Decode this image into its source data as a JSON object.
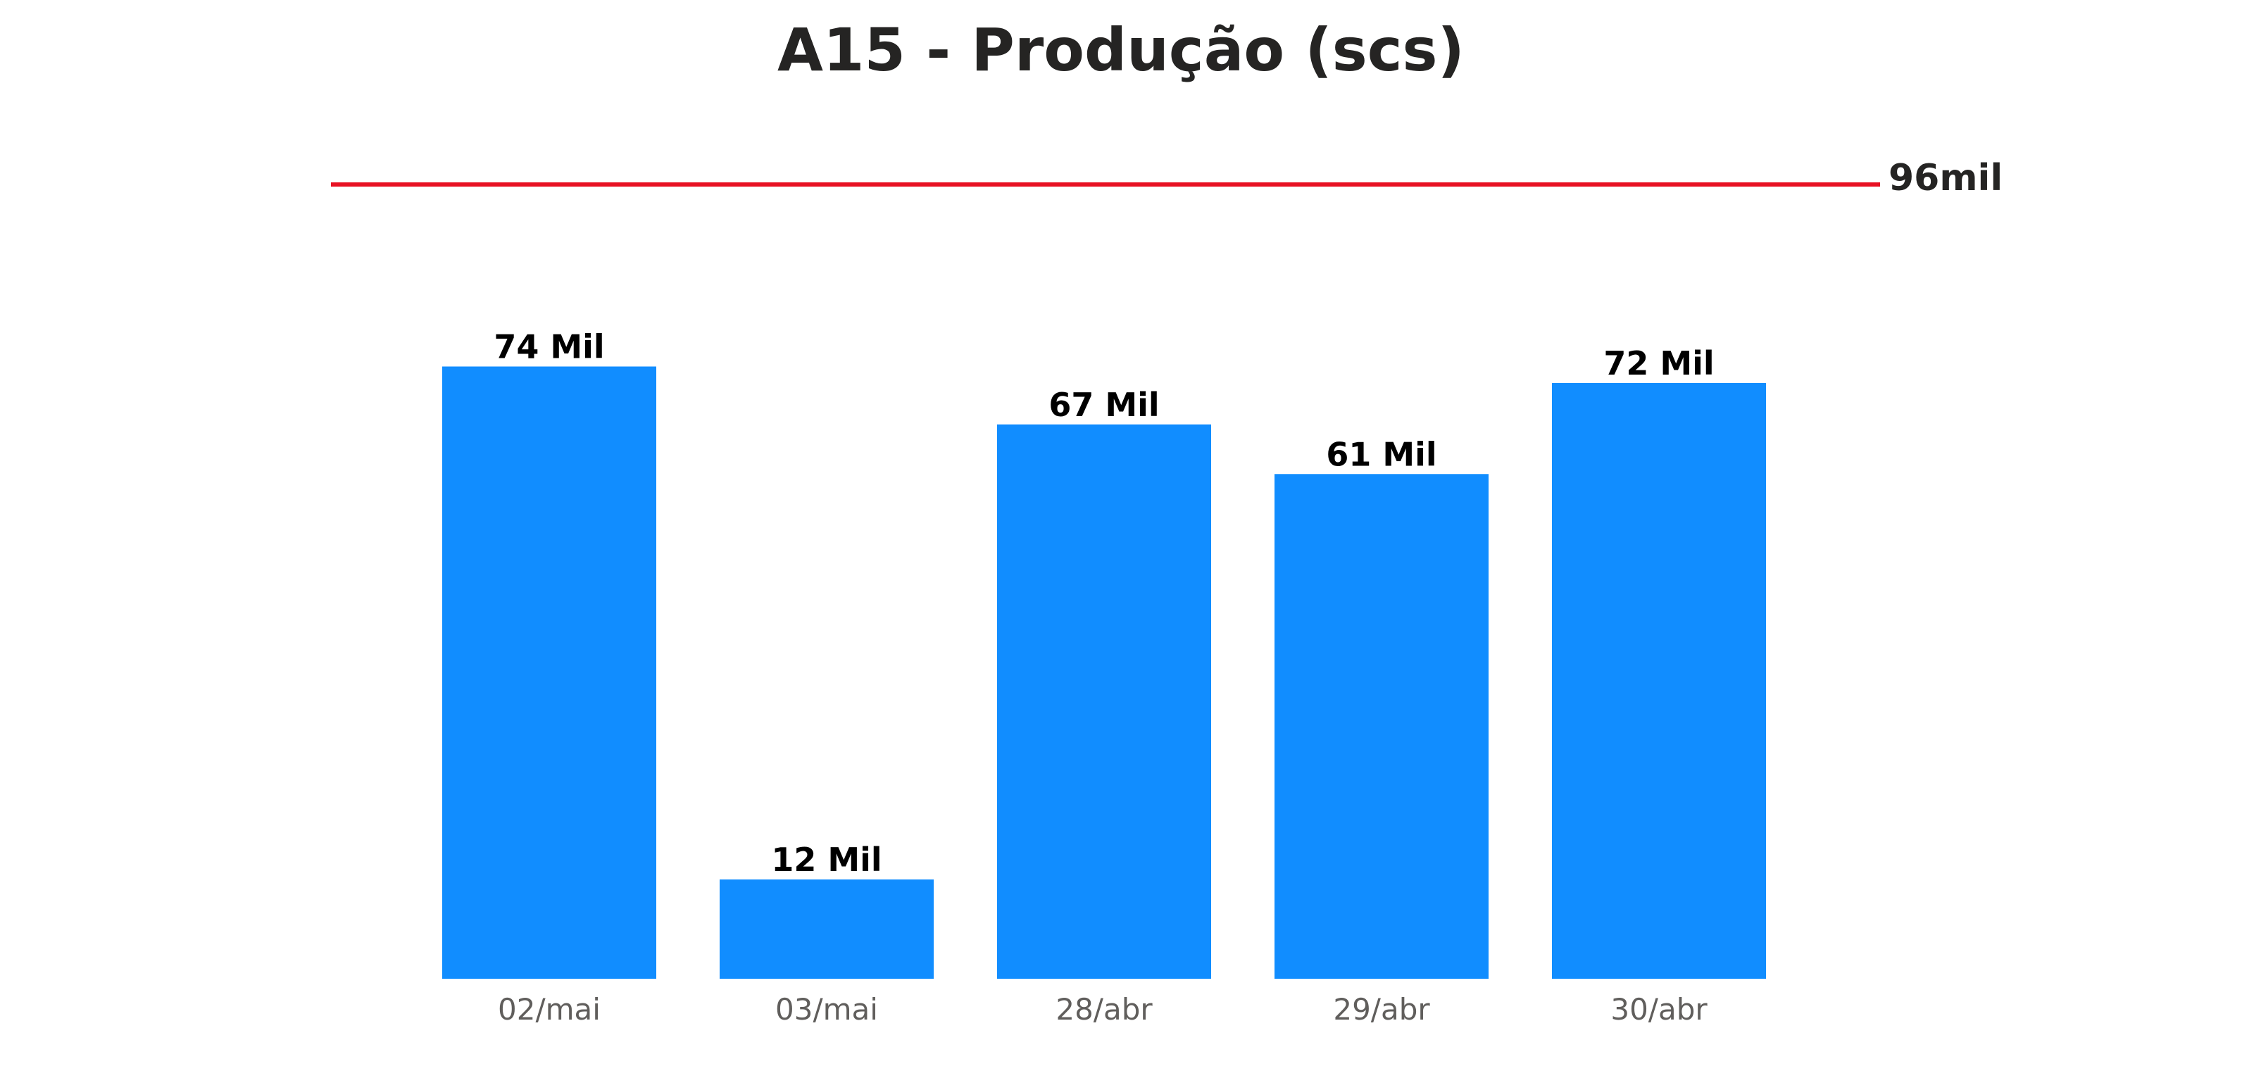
{
  "chart_data": {
    "type": "bar",
    "title": "A15 - Produção (scs)",
    "xlabel": "",
    "ylabel": "",
    "categories": [
      "02/mai",
      "03/mai",
      "28/abr",
      "29/abr",
      "30/abr"
    ],
    "values": [
      74,
      12,
      67,
      61,
      72
    ],
    "value_unit": "Mil",
    "data_labels": [
      "74 Mil",
      "12 Mil",
      "67 Mil",
      "61 Mil",
      "72 Mil"
    ],
    "ylim": [
      0,
      100
    ],
    "grid": false,
    "legend": "none",
    "reference_line": {
      "value": 96,
      "label": "96mil",
      "color": "#e81123"
    },
    "colors": {
      "bar": "#118dff",
      "reference": "#e81123"
    }
  }
}
